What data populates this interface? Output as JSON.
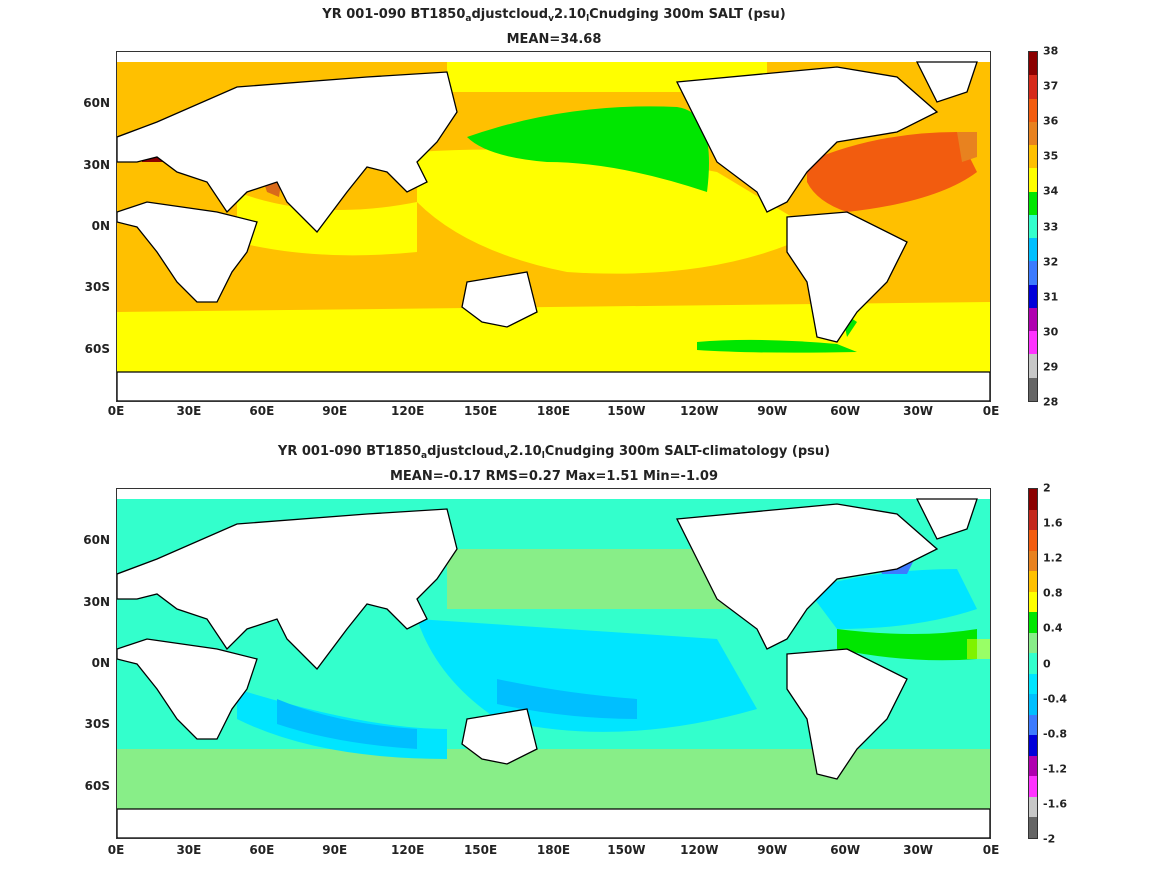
{
  "panel1": {
    "title_parts": [
      "YR 001-090 BT1850",
      "a",
      "djustcloud",
      "v",
      "2.10",
      "l",
      "Cnudging 300m SALT (psu)"
    ],
    "subtitle": "MEAN=34.68",
    "cbar_labels": [
      "38",
      "37",
      "36",
      "35",
      "34",
      "33",
      "32",
      "31",
      "30",
      "29",
      "28"
    ],
    "cbar_colors": [
      "#8b0000",
      "#d62a1a",
      "#f25c0f",
      "#e8821f",
      "#ffc000",
      "#ffff00",
      "#00e600",
      "#33ffcc",
      "#00bfff",
      "#3c7bff",
      "#0000d9",
      "#b000b0",
      "#ff33ff",
      "#c8c8c8",
      "#666666"
    ]
  },
  "panel2": {
    "title_parts": [
      "YR 001-090 BT1850",
      "a",
      "djustcloud",
      "v",
      "2.10",
      "l",
      "Cnudging 300m SALT-climatology (psu)"
    ],
    "subtitle": "MEAN=-0.17   RMS=0.27   Max=1.51   Min=-1.09",
    "cbar_labels": [
      "2",
      "1.6",
      "1.2",
      "0.8",
      "0.4",
      "0",
      "-0.4",
      "-0.8",
      "-1.2",
      "-1.6",
      "-2"
    ],
    "cbar_colors": [
      "#8b0000",
      "#c4281c",
      "#f25c0f",
      "#e8821f",
      "#ffc000",
      "#ffff00",
      "#00e600",
      "#88ee88",
      "#33ffcc",
      "#00e5ff",
      "#00bfff",
      "#3c7bff",
      "#0000d9",
      "#b000b0",
      "#ff33ff",
      "#c8c8c8",
      "#666666"
    ]
  },
  "x_ticks": [
    "0E",
    "30E",
    "60E",
    "90E",
    "120E",
    "150E",
    "180E",
    "150W",
    "120W",
    "90W",
    "60W",
    "30W",
    "0E"
  ],
  "y_ticks": [
    "60N",
    "30N",
    "0N",
    "30S",
    "60S"
  ],
  "colors": {
    "salt_fresh": "#ffff00",
    "salt_mid": "#ffc000",
    "salt_high": "#f25c0f",
    "salt_low": "#00e600",
    "diff_zero": "#33ffcc",
    "diff_neg": "#00e5ff",
    "diff_pos": "#88ee88",
    "land": "#ffffff"
  }
}
